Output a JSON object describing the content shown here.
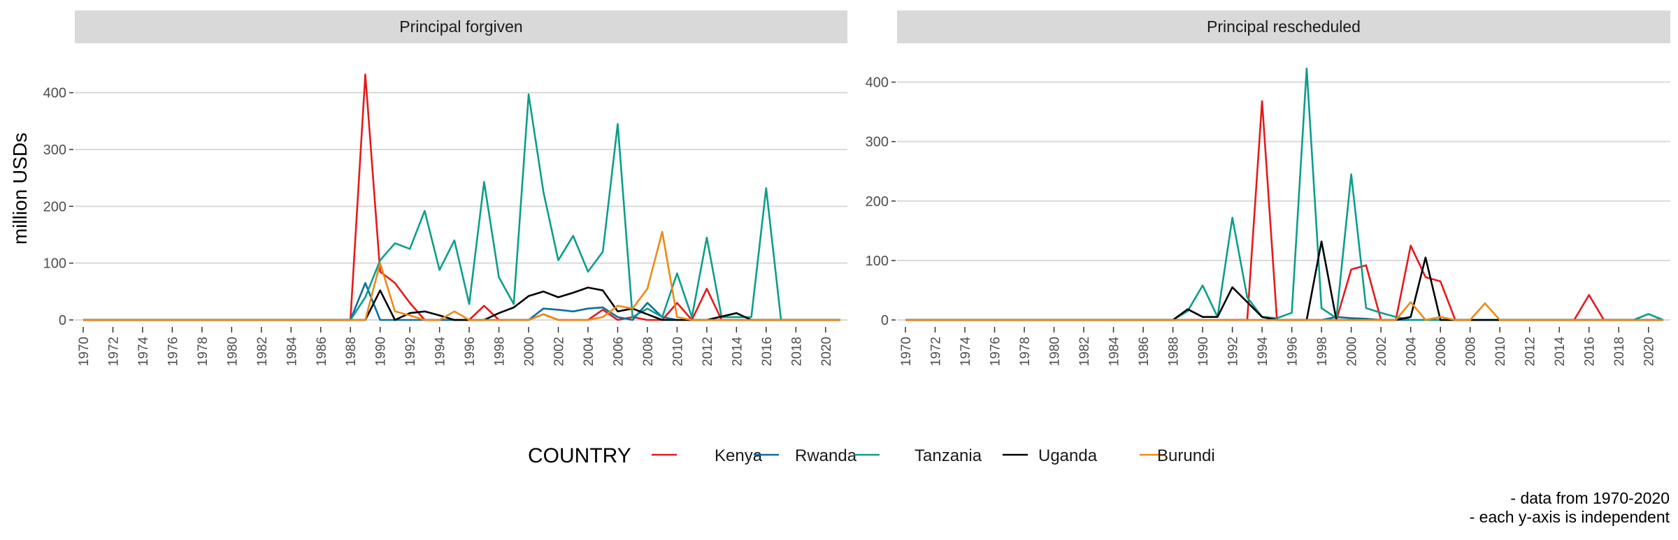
{
  "colors": {
    "Kenya": "#e41a1c",
    "Rwanda": "#0b6f9c",
    "Tanzania": "#0b9e8a",
    "Uganda": "#000000",
    "Burundi": "#ee8a12",
    "strip_bg": "#d9d9d9",
    "grid": "#d9d9d9"
  },
  "chart_data": {
    "type": "line",
    "ylabel": "million USDs",
    "legend": {
      "title": "COUNTRY",
      "placement": "bottom",
      "entries": [
        "Kenya",
        "Rwanda",
        "Tanzania",
        "Uganda",
        "Burundi"
      ]
    },
    "caption": [
      "- data from 1970-2020",
      "- each y-axis is independent"
    ],
    "x_ticks": [
      "1970",
      "1972",
      "1974",
      "1976",
      "1978",
      "1980",
      "1982",
      "1984",
      "1986",
      "1988",
      "1990",
      "1992",
      "1994",
      "1996",
      "1998",
      "2000",
      "2002",
      "2004",
      "2006",
      "2008",
      "2010",
      "2012",
      "2014",
      "2016",
      "2018",
      "2020"
    ],
    "grid": true,
    "panels": [
      {
        "title": "Principal forgiven",
        "xlim": [
          1970,
          2021
        ],
        "ylim": [
          0,
          450
        ],
        "y_ticks": [
          "0",
          "100",
          "200",
          "300",
          "400"
        ],
        "y_values": [
          0,
          100,
          200,
          300,
          400
        ],
        "series": [
          {
            "name": "Kenya",
            "points": [
              [
                1970,
                0
              ],
              [
                1988,
                0
              ],
              [
                1989,
                432
              ],
              [
                1990,
                85
              ],
              [
                1991,
                65
              ],
              [
                1992,
                30
              ],
              [
                1993,
                0
              ],
              [
                1996,
                0
              ],
              [
                1997,
                25
              ],
              [
                1998,
                0
              ],
              [
                2000,
                0
              ],
              [
                2001,
                10
              ],
              [
                2002,
                0
              ],
              [
                2004,
                0
              ],
              [
                2005,
                18
              ],
              [
                2006,
                0
              ],
              [
                2007,
                5
              ],
              [
                2008,
                0
              ],
              [
                2009,
                0
              ],
              [
                2010,
                30
              ],
              [
                2011,
                0
              ],
              [
                2012,
                55
              ],
              [
                2013,
                0
              ],
              [
                2021,
                0
              ]
            ]
          },
          {
            "name": "Rwanda",
            "points": [
              [
                1970,
                0
              ],
              [
                1988,
                0
              ],
              [
                1989,
                65
              ],
              [
                1990,
                0
              ],
              [
                1996,
                0
              ],
              [
                1997,
                0
              ],
              [
                1998,
                0
              ],
              [
                2000,
                0
              ],
              [
                2001,
                20
              ],
              [
                2002,
                18
              ],
              [
                2003,
                15
              ],
              [
                2004,
                20
              ],
              [
                2005,
                22
              ],
              [
                2006,
                5
              ],
              [
                2007,
                0
              ],
              [
                2008,
                30
              ],
              [
                2009,
                5
              ],
              [
                2010,
                0
              ],
              [
                2021,
                0
              ]
            ]
          },
          {
            "name": "Tanzania",
            "points": [
              [
                1970,
                0
              ],
              [
                1988,
                0
              ],
              [
                1989,
                40
              ],
              [
                1990,
                105
              ],
              [
                1991,
                135
              ],
              [
                1992,
                125
              ],
              [
                1993,
                192
              ],
              [
                1994,
                88
              ],
              [
                1995,
                140
              ],
              [
                1996,
                28
              ],
              [
                1997,
                243
              ],
              [
                1998,
                75
              ],
              [
                1999,
                28
              ],
              [
                2000,
                397
              ],
              [
                2001,
                225
              ],
              [
                2002,
                105
              ],
              [
                2003,
                148
              ],
              [
                2004,
                85
              ],
              [
                2005,
                120
              ],
              [
                2006,
                345
              ],
              [
                2007,
                5
              ],
              [
                2008,
                20
              ],
              [
                2009,
                5
              ],
              [
                2010,
                82
              ],
              [
                2011,
                5
              ],
              [
                2012,
                145
              ],
              [
                2013,
                5
              ],
              [
                2014,
                5
              ],
              [
                2015,
                5
              ],
              [
                2016,
                232
              ],
              [
                2017,
                0
              ],
              [
                2021,
                0
              ]
            ]
          },
          {
            "name": "Uganda",
            "points": [
              [
                1970,
                0
              ],
              [
                1989,
                0
              ],
              [
                1990,
                52
              ],
              [
                1991,
                0
              ],
              [
                1992,
                12
              ],
              [
                1993,
                15
              ],
              [
                1994,
                8
              ],
              [
                1995,
                0
              ],
              [
                1997,
                0
              ],
              [
                1998,
                12
              ],
              [
                1999,
                22
              ],
              [
                2000,
                42
              ],
              [
                2001,
                50
              ],
              [
                2002,
                40
              ],
              [
                2003,
                48
              ],
              [
                2004,
                57
              ],
              [
                2005,
                52
              ],
              [
                2006,
                15
              ],
              [
                2007,
                20
              ],
              [
                2008,
                10
              ],
              [
                2009,
                0
              ],
              [
                2012,
                0
              ],
              [
                2014,
                12
              ],
              [
                2015,
                0
              ],
              [
                2021,
                0
              ]
            ]
          },
          {
            "name": "Burundi",
            "points": [
              [
                1970,
                0
              ],
              [
                1989,
                0
              ],
              [
                1990,
                100
              ],
              [
                1991,
                15
              ],
              [
                1992,
                8
              ],
              [
                1993,
                0
              ],
              [
                1994,
                0
              ],
              [
                1995,
                15
              ],
              [
                1996,
                0
              ],
              [
                1999,
                0
              ],
              [
                2000,
                0
              ],
              [
                2001,
                10
              ],
              [
                2002,
                0
              ],
              [
                2004,
                0
              ],
              [
                2005,
                5
              ],
              [
                2006,
                25
              ],
              [
                2007,
                20
              ],
              [
                2008,
                55
              ],
              [
                2009,
                155
              ],
              [
                2010,
                5
              ],
              [
                2011,
                0
              ],
              [
                2021,
                0
              ]
            ]
          }
        ]
      },
      {
        "title": "Principal rescheduled",
        "xlim": [
          1970,
          2021
        ],
        "ylim": [
          0,
          430
        ],
        "y_ticks": [
          "0",
          "100",
          "200",
          "300",
          "400"
        ],
        "y_values": [
          0,
          100,
          200,
          300,
          400
        ],
        "series": [
          {
            "name": "Kenya",
            "points": [
              [
                1970,
                0
              ],
              [
                1993,
                0
              ],
              [
                1994,
                368
              ],
              [
                1995,
                0
              ],
              [
                1999,
                0
              ],
              [
                2000,
                85
              ],
              [
                2001,
                92
              ],
              [
                2002,
                0
              ],
              [
                2003,
                0
              ],
              [
                2004,
                125
              ],
              [
                2005,
                72
              ],
              [
                2006,
                65
              ],
              [
                2007,
                0
              ],
              [
                2015,
                0
              ],
              [
                2016,
                42
              ],
              [
                2017,
                0
              ],
              [
                2021,
                0
              ]
            ]
          },
          {
            "name": "Rwanda",
            "points": [
              [
                1970,
                0
              ],
              [
                1998,
                0
              ],
              [
                1999,
                5
              ],
              [
                2000,
                3
              ],
              [
                2001,
                2
              ],
              [
                2002,
                0
              ],
              [
                2021,
                0
              ]
            ]
          },
          {
            "name": "Tanzania",
            "points": [
              [
                1970,
                0
              ],
              [
                1988,
                0
              ],
              [
                1989,
                15
              ],
              [
                1990,
                58
              ],
              [
                1991,
                5
              ],
              [
                1992,
                172
              ],
              [
                1993,
                38
              ],
              [
                1994,
                5
              ],
              [
                1995,
                3
              ],
              [
                1996,
                12
              ],
              [
                1997,
                423
              ],
              [
                1998,
                20
              ],
              [
                1999,
                3
              ],
              [
                2000,
                245
              ],
              [
                2001,
                20
              ],
              [
                2002,
                12
              ],
              [
                2003,
                5
              ],
              [
                2004,
                0
              ],
              [
                2019,
                0
              ],
              [
                2020,
                10
              ],
              [
                2021,
                0
              ]
            ]
          },
          {
            "name": "Uganda",
            "points": [
              [
                1970,
                0
              ],
              [
                1988,
                0
              ],
              [
                1989,
                18
              ],
              [
                1990,
                5
              ],
              [
                1991,
                5
              ],
              [
                1992,
                55
              ],
              [
                1993,
                30
              ],
              [
                1994,
                5
              ],
              [
                1995,
                0
              ],
              [
                1997,
                0
              ],
              [
                1998,
                132
              ],
              [
                1999,
                0
              ],
              [
                2003,
                0
              ],
              [
                2004,
                5
              ],
              [
                2005,
                105
              ],
              [
                2006,
                0
              ],
              [
                2021,
                0
              ]
            ]
          },
          {
            "name": "Burundi",
            "points": [
              [
                1970,
                0
              ],
              [
                2003,
                0
              ],
              [
                2004,
                30
              ],
              [
                2005,
                0
              ],
              [
                2006,
                5
              ],
              [
                2007,
                0
              ],
              [
                2008,
                0
              ],
              [
                2009,
                28
              ],
              [
                2010,
                0
              ],
              [
                2021,
                0
              ]
            ]
          }
        ]
      }
    ]
  }
}
